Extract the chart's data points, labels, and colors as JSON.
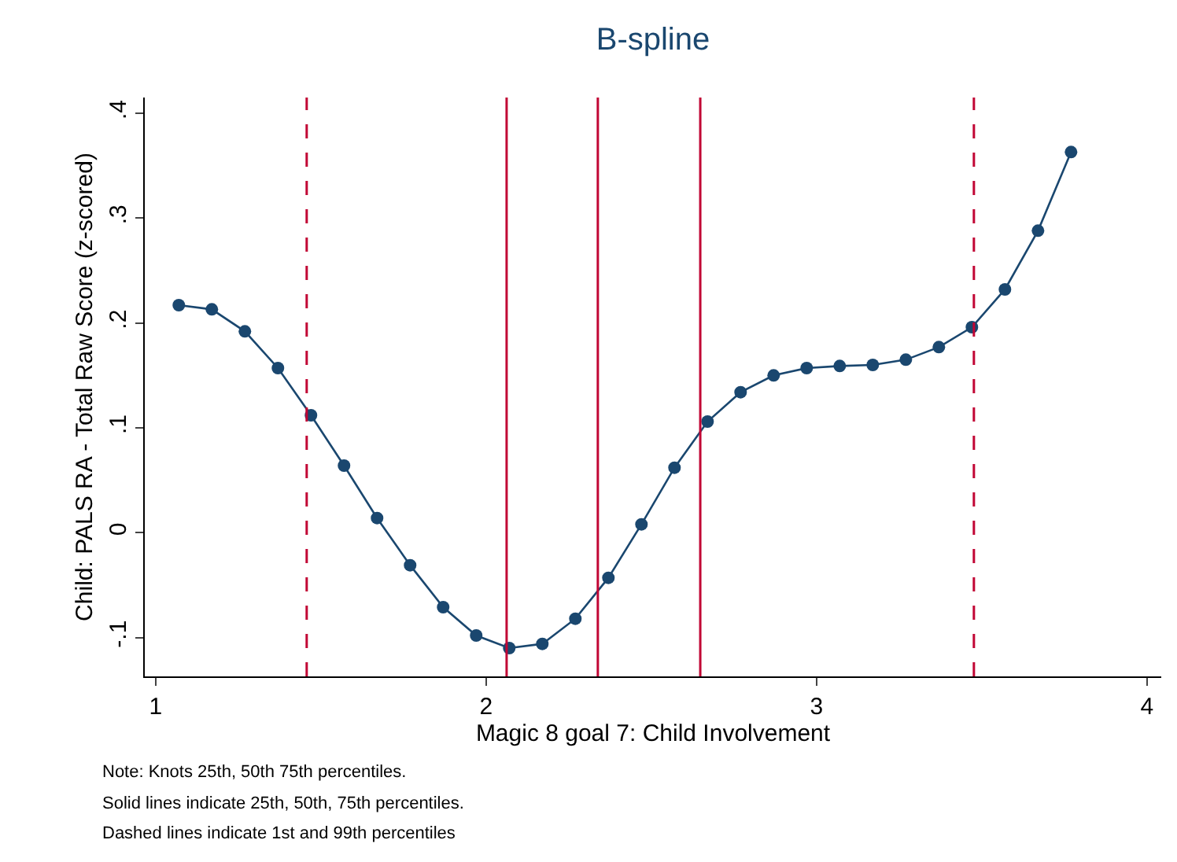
{
  "chart_data": {
    "type": "line",
    "title": "B-spline",
    "xlabel": "Magic 8 goal 7: Child Involvement",
    "ylabel": "Child: PALS RA - Total Raw Score (z-scored)",
    "x": [
      1.07,
      1.17,
      1.27,
      1.37,
      1.47,
      1.57,
      1.67,
      1.77,
      1.87,
      1.97,
      2.07,
      2.17,
      2.27,
      2.37,
      2.47,
      2.57,
      2.67,
      2.77,
      2.87,
      2.97,
      3.07,
      3.17,
      3.27,
      3.37,
      3.47,
      3.57,
      3.67,
      3.77
    ],
    "series": [
      {
        "color": "#1a476f",
        "values": [
          0.217,
          0.213,
          0.192,
          0.157,
          0.112,
          0.064,
          0.014,
          -0.031,
          -0.071,
          -0.098,
          -0.11,
          -0.106,
          -0.082,
          -0.043,
          0.008,
          0.062,
          0.106,
          0.134,
          0.15,
          0.157,
          0.159,
          0.16,
          0.165,
          0.177,
          0.196,
          0.232,
          0.288,
          0.363
        ]
      }
    ],
    "marker": "circle",
    "line_style": "solid",
    "grid": false,
    "legend": false,
    "xlim": [
      0.967,
      4.043
    ],
    "xticks": [
      1,
      2,
      3,
      4
    ],
    "ylim": [
      -0.137,
      0.415
    ],
    "yticks": [
      {
        "value": -0.1,
        "label": "-.1"
      },
      0,
      {
        "value": 0.1,
        "label": ".1"
      },
      {
        "value": 0.2,
        "label": ".2"
      },
      {
        "value": 0.3,
        "label": ".3"
      },
      {
        "value": 0.4,
        "label": ".4"
      }
    ],
    "ref_lines": [
      {
        "axis": "x",
        "value": 1.457,
        "color": "#c10534",
        "line_style": "dashed"
      },
      {
        "axis": "x",
        "value": 2.062,
        "color": "#c10534",
        "line_style": "solid"
      },
      {
        "axis": "x",
        "value": 2.338,
        "color": "#c10534",
        "line_style": "solid"
      },
      {
        "axis": "x",
        "value": 2.648,
        "color": "#c10534",
        "line_style": "solid"
      },
      {
        "axis": "x",
        "value": 3.476,
        "color": "#c10534",
        "line_style": "dashed"
      }
    ],
    "annotations": [
      "Note: Knots 25th, 50th 75th percentiles.",
      "Solid lines indicate 25th, 50th, 75th percentiles.",
      "Dashed lines indicate 1st and 99th percentiles"
    ]
  }
}
